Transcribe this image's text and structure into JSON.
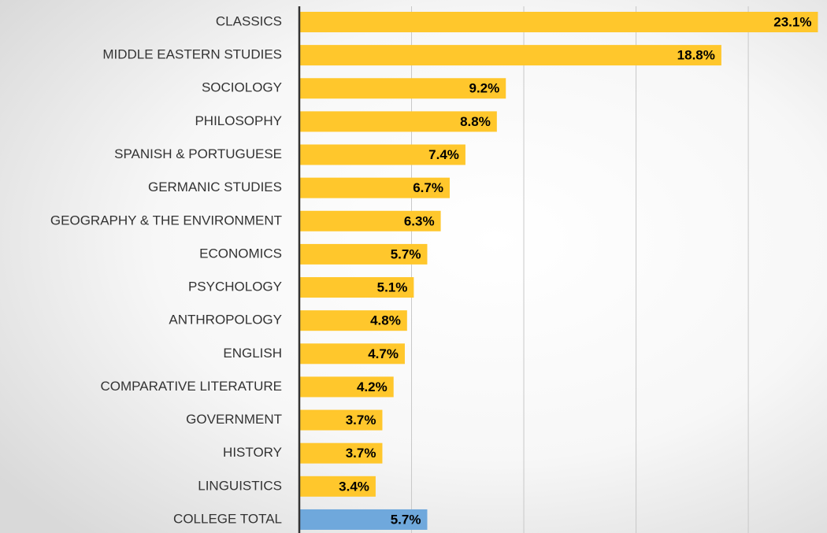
{
  "chart_data": {
    "type": "barh",
    "categories": [
      "CLASSICS",
      "MIDDLE EASTERN STUDIES",
      "SOCIOLOGY",
      "PHILOSOPHY",
      "SPANISH & PORTUGUESE",
      "GERMANIC STUDIES",
      "GEOGRAPHY & THE ENVIRONMENT",
      "ECONOMICS",
      "PSYCHOLOGY",
      "ANTHROPOLOGY",
      "ENGLISH",
      "COMPARATIVE LITERATURE",
      "GOVERNMENT",
      "HISTORY",
      "LINGUISTICS",
      "COLLEGE TOTAL"
    ],
    "values": [
      23.1,
      18.8,
      9.2,
      8.8,
      7.4,
      6.7,
      6.3,
      5.7,
      5.1,
      4.8,
      4.7,
      4.2,
      3.7,
      3.7,
      3.4,
      5.7
    ],
    "value_labels": [
      "23.1%",
      "18.8%",
      "9.2%",
      "8.8%",
      "7.4%",
      "6.7%",
      "6.3%",
      "5.7%",
      "5.1%",
      "4.8%",
      "4.7%",
      "4.2%",
      "3.7%",
      "3.7%",
      "3.4%",
      "5.7%"
    ],
    "colors": [
      "#ffc72c",
      "#ffc72c",
      "#ffc72c",
      "#ffc72c",
      "#ffc72c",
      "#ffc72c",
      "#ffc72c",
      "#ffc72c",
      "#ffc72c",
      "#ffc72c",
      "#ffc72c",
      "#ffc72c",
      "#ffc72c",
      "#ffc72c",
      "#ffc72c",
      "#6fa8dc"
    ],
    "xlim": [
      0,
      23.4
    ],
    "xticks": [
      5,
      10,
      15,
      20
    ],
    "grid": true
  }
}
